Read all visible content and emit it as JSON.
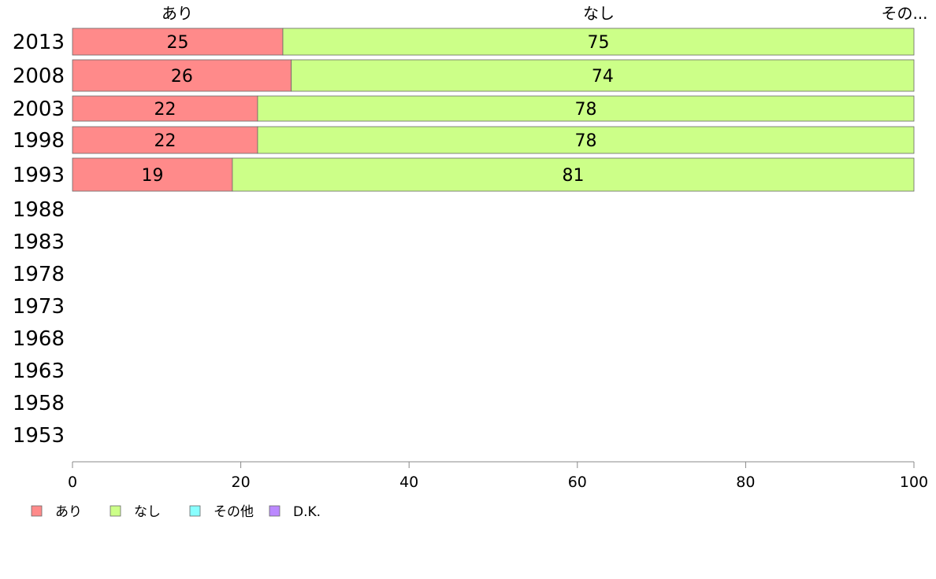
{
  "chart_data": {
    "type": "bar",
    "orientation": "horizontal",
    "stacked": true,
    "categories": [
      "2013",
      "2008",
      "2003",
      "1998",
      "1993",
      "1988",
      "1983",
      "1978",
      "1973",
      "1968",
      "1963",
      "1958",
      "1953"
    ],
    "series": [
      {
        "name": "あり",
        "color": "#ff8a8a",
        "values": [
          25,
          26,
          22,
          22,
          19,
          null,
          null,
          null,
          null,
          null,
          null,
          null,
          null
        ]
      },
      {
        "name": "なし",
        "color": "#ccff88",
        "values": [
          75,
          74,
          78,
          78,
          81,
          null,
          null,
          null,
          null,
          null,
          null,
          null,
          null
        ]
      },
      {
        "name": "その他",
        "color": "#88ffff",
        "values": [
          0,
          0,
          0,
          0,
          0,
          null,
          null,
          null,
          null,
          null,
          null,
          null,
          null
        ]
      },
      {
        "name": "D.K.",
        "color": "#bb88ff",
        "values": [
          0,
          0,
          0,
          0,
          0,
          null,
          null,
          null,
          null,
          null,
          null,
          null,
          null
        ]
      }
    ],
    "top_labels": [
      "あり",
      "なし",
      "その..."
    ],
    "xlim": [
      0,
      100
    ],
    "xticks": [
      0,
      20,
      40,
      60,
      80,
      100
    ],
    "grid": false,
    "legend_position": "bottom-left",
    "bar_label_font": "sans-serif"
  }
}
